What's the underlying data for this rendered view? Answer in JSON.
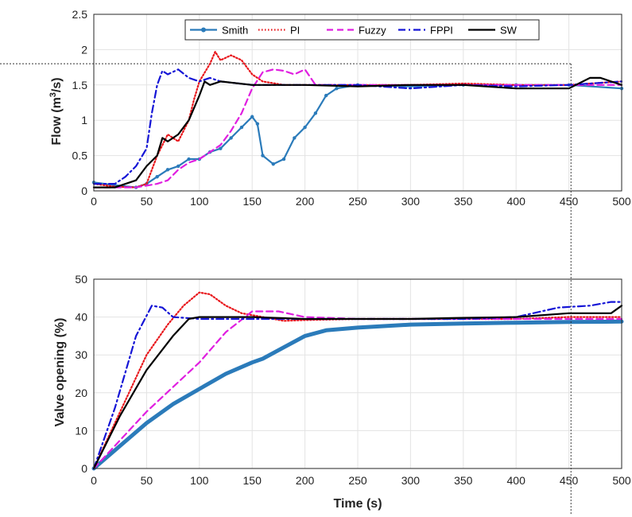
{
  "chart_data": [
    {
      "type": "line",
      "ylabel": "Flow (m³/s)",
      "ylabel_main": "Flow (m",
      "ylabel_sup": "3",
      "ylabel_tail": "/s)",
      "xlim": [
        0,
        500
      ],
      "ylim": [
        0,
        2.5
      ],
      "xticks": [
        "0",
        "50",
        "100",
        "150",
        "200",
        "250",
        "300",
        "350",
        "400",
        "450",
        "500"
      ],
      "yticks": [
        "0",
        "0.5",
        "1",
        "1.5",
        "2",
        "2.5"
      ],
      "grid": true,
      "legend_position": "top",
      "reference_lines": {
        "horizontal_y": 1.8,
        "vertical_x": 452
      },
      "series": [
        {
          "name": "Smith",
          "color": "#2b7bba",
          "style": "solid-dot",
          "points": [
            [
              0,
              0.12
            ],
            [
              20,
              0.08
            ],
            [
              40,
              0.05
            ],
            [
              50,
              0.1
            ],
            [
              60,
              0.2
            ],
            [
              70,
              0.3
            ],
            [
              80,
              0.35
            ],
            [
              90,
              0.45
            ],
            [
              100,
              0.45
            ],
            [
              110,
              0.55
            ],
            [
              120,
              0.6
            ],
            [
              130,
              0.75
            ],
            [
              140,
              0.9
            ],
            [
              150,
              1.05
            ],
            [
              155,
              0.95
            ],
            [
              160,
              0.5
            ],
            [
              170,
              0.38
            ],
            [
              180,
              0.45
            ],
            [
              190,
              0.75
            ],
            [
              200,
              0.9
            ],
            [
              210,
              1.1
            ],
            [
              220,
              1.35
            ],
            [
              230,
              1.45
            ],
            [
              250,
              1.5
            ],
            [
              300,
              1.48
            ],
            [
              350,
              1.5
            ],
            [
              400,
              1.5
            ],
            [
              450,
              1.5
            ],
            [
              500,
              1.45
            ]
          ]
        },
        {
          "name": "PI",
          "color": "#e8161b",
          "style": "dotted",
          "points": [
            [
              0,
              0.1
            ],
            [
              20,
              0.06
            ],
            [
              40,
              0.05
            ],
            [
              50,
              0.1
            ],
            [
              60,
              0.5
            ],
            [
              70,
              0.8
            ],
            [
              80,
              0.7
            ],
            [
              90,
              1.0
            ],
            [
              95,
              1.3
            ],
            [
              100,
              1.55
            ],
            [
              110,
              1.8
            ],
            [
              115,
              1.97
            ],
            [
              120,
              1.85
            ],
            [
              130,
              1.92
            ],
            [
              140,
              1.85
            ],
            [
              150,
              1.65
            ],
            [
              160,
              1.55
            ],
            [
              180,
              1.5
            ],
            [
              200,
              1.5
            ],
            [
              250,
              1.5
            ],
            [
              300,
              1.5
            ],
            [
              350,
              1.52
            ],
            [
              400,
              1.5
            ],
            [
              450,
              1.5
            ],
            [
              500,
              1.55
            ]
          ]
        },
        {
          "name": "Fuzzy",
          "color": "#e01fe0",
          "style": "dashed",
          "points": [
            [
              0,
              0.05
            ],
            [
              40,
              0.05
            ],
            [
              60,
              0.1
            ],
            [
              70,
              0.15
            ],
            [
              80,
              0.3
            ],
            [
              90,
              0.4
            ],
            [
              100,
              0.45
            ],
            [
              110,
              0.55
            ],
            [
              120,
              0.65
            ],
            [
              130,
              0.85
            ],
            [
              140,
              1.1
            ],
            [
              150,
              1.45
            ],
            [
              160,
              1.68
            ],
            [
              170,
              1.72
            ],
            [
              180,
              1.7
            ],
            [
              190,
              1.65
            ],
            [
              200,
              1.72
            ],
            [
              210,
              1.5
            ],
            [
              250,
              1.5
            ],
            [
              300,
              1.5
            ],
            [
              350,
              1.5
            ],
            [
              400,
              1.5
            ],
            [
              450,
              1.5
            ],
            [
              500,
              1.5
            ]
          ]
        },
        {
          "name": "FPPI",
          "color": "#1515d6",
          "style": "dashdot",
          "points": [
            [
              0,
              0.1
            ],
            [
              20,
              0.1
            ],
            [
              30,
              0.2
            ],
            [
              40,
              0.35
            ],
            [
              50,
              0.6
            ],
            [
              55,
              1.1
            ],
            [
              60,
              1.5
            ],
            [
              65,
              1.7
            ],
            [
              70,
              1.65
            ],
            [
              80,
              1.72
            ],
            [
              90,
              1.6
            ],
            [
              100,
              1.55
            ],
            [
              110,
              1.6
            ],
            [
              120,
              1.55
            ],
            [
              150,
              1.5
            ],
            [
              200,
              1.5
            ],
            [
              250,
              1.5
            ],
            [
              300,
              1.45
            ],
            [
              350,
              1.5
            ],
            [
              400,
              1.48
            ],
            [
              450,
              1.5
            ],
            [
              500,
              1.55
            ]
          ]
        },
        {
          "name": "SW",
          "color": "#000000",
          "style": "solid",
          "points": [
            [
              0,
              0.05
            ],
            [
              20,
              0.05
            ],
            [
              40,
              0.15
            ],
            [
              50,
              0.35
            ],
            [
              60,
              0.5
            ],
            [
              65,
              0.75
            ],
            [
              70,
              0.7
            ],
            [
              80,
              0.8
            ],
            [
              90,
              1.0
            ],
            [
              100,
              1.35
            ],
            [
              105,
              1.55
            ],
            [
              110,
              1.5
            ],
            [
              120,
              1.55
            ],
            [
              150,
              1.5
            ],
            [
              200,
              1.5
            ],
            [
              250,
              1.48
            ],
            [
              300,
              1.5
            ],
            [
              350,
              1.5
            ],
            [
              400,
              1.45
            ],
            [
              450,
              1.45
            ],
            [
              470,
              1.6
            ],
            [
              480,
              1.6
            ],
            [
              500,
              1.5
            ]
          ]
        }
      ]
    },
    {
      "type": "line",
      "xlabel": "Time (s)",
      "ylabel": "Valve opening (%)",
      "xlim": [
        0,
        500
      ],
      "ylim": [
        0,
        50
      ],
      "xticks": [
        "0",
        "50",
        "100",
        "150",
        "200",
        "250",
        "300",
        "350",
        "400",
        "450",
        "500"
      ],
      "yticks": [
        "0",
        "10",
        "20",
        "30",
        "40",
        "50"
      ],
      "grid": true,
      "reference_lines": {
        "vertical_x": 452
      },
      "series": [
        {
          "name": "Smith",
          "color": "#2b7bba",
          "style": "thick",
          "points": [
            [
              0,
              0
            ],
            [
              25,
              6
            ],
            [
              50,
              12
            ],
            [
              75,
              17
            ],
            [
              100,
              21
            ],
            [
              125,
              25
            ],
            [
              150,
              28
            ],
            [
              160,
              29
            ],
            [
              180,
              32
            ],
            [
              200,
              35
            ],
            [
              220,
              36.5
            ],
            [
              250,
              37.2
            ],
            [
              300,
              38
            ],
            [
              350,
              38.3
            ],
            [
              400,
              38.5
            ],
            [
              450,
              38.7
            ],
            [
              500,
              38.8
            ]
          ]
        },
        {
          "name": "PI",
          "color": "#e8161b",
          "style": "dotted",
          "points": [
            [
              0,
              0
            ],
            [
              25,
              15
            ],
            [
              50,
              30
            ],
            [
              70,
              38
            ],
            [
              85,
              43
            ],
            [
              100,
              46.5
            ],
            [
              110,
              46
            ],
            [
              125,
              43
            ],
            [
              140,
              41
            ],
            [
              160,
              40
            ],
            [
              180,
              39
            ],
            [
              200,
              39.2
            ],
            [
              250,
              39.5
            ],
            [
              300,
              39.5
            ],
            [
              350,
              39.5
            ],
            [
              400,
              39.5
            ],
            [
              450,
              40
            ],
            [
              500,
              40
            ]
          ]
        },
        {
          "name": "Fuzzy",
          "color": "#e01fe0",
          "style": "dashed",
          "points": [
            [
              0,
              0
            ],
            [
              50,
              15
            ],
            [
              100,
              28
            ],
            [
              125,
              36
            ],
            [
              150,
              41.5
            ],
            [
              175,
              41.5
            ],
            [
              200,
              40
            ],
            [
              250,
              39.5
            ],
            [
              300,
              39.5
            ],
            [
              350,
              39.5
            ],
            [
              400,
              39.5
            ],
            [
              450,
              39.5
            ],
            [
              500,
              39.5
            ]
          ]
        },
        {
          "name": "FPPI",
          "color": "#1515d6",
          "style": "dashdot",
          "points": [
            [
              0,
              0
            ],
            [
              20,
              16
            ],
            [
              40,
              35
            ],
            [
              55,
              43
            ],
            [
              65,
              42.5
            ],
            [
              75,
              40
            ],
            [
              100,
              39.5
            ],
            [
              150,
              39.5
            ],
            [
              200,
              39.5
            ],
            [
              300,
              39.5
            ],
            [
              350,
              39.5
            ],
            [
              400,
              40
            ],
            [
              440,
              42.5
            ],
            [
              470,
              43
            ],
            [
              490,
              44
            ],
            [
              500,
              44
            ]
          ]
        },
        {
          "name": "SW",
          "color": "#000000",
          "style": "solid",
          "points": [
            [
              0,
              0
            ],
            [
              25,
              14
            ],
            [
              50,
              26
            ],
            [
              75,
              35
            ],
            [
              90,
              39.5
            ],
            [
              100,
              40
            ],
            [
              150,
              40
            ],
            [
              200,
              39.5
            ],
            [
              250,
              39.5
            ],
            [
              300,
              39.5
            ],
            [
              350,
              39.8
            ],
            [
              400,
              40
            ],
            [
              450,
              41
            ],
            [
              470,
              41
            ],
            [
              490,
              41
            ],
            [
              500,
              43
            ]
          ]
        }
      ]
    }
  ]
}
